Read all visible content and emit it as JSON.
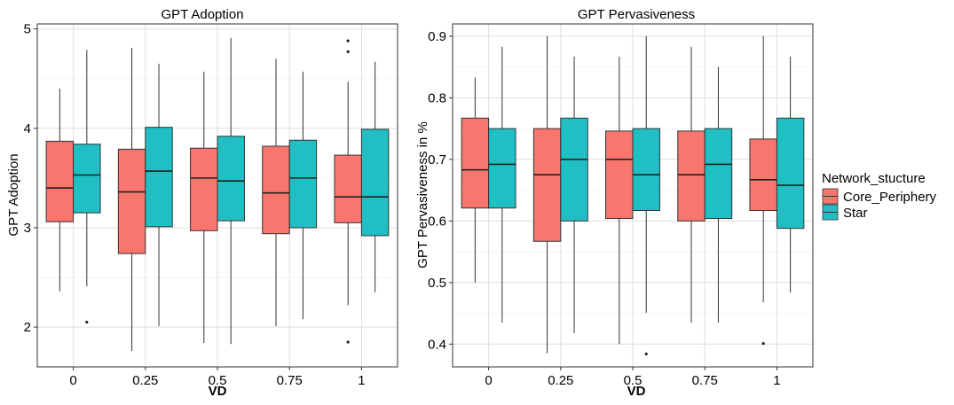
{
  "colors": {
    "Core_Periphery": "#f8766d",
    "Star": "#1fbfc3",
    "grid": "#dedede",
    "panel_border": "#333333"
  },
  "legend": {
    "title": "Network_stucture",
    "items": [
      "Core_Periphery",
      "Star"
    ],
    "placement": "right"
  },
  "chart_data": [
    {
      "type": "boxplot",
      "title": "GPT Adoption",
      "xlabel": "VD",
      "ylabel": "GPT Adoption",
      "categories": [
        "0",
        "0.25",
        "0.5",
        "0.75",
        "1"
      ],
      "ylim": [
        1.6,
        5.05
      ],
      "yticks": [
        2,
        3,
        4,
        5
      ],
      "ytick_labels": [
        "2",
        "3",
        "4",
        "5"
      ],
      "grid": true,
      "series": [
        {
          "name": "Core_Periphery",
          "boxes": [
            {
              "lw": 2.36,
              "q1": 3.06,
              "med": 3.4,
              "q3": 3.87,
              "uw": 4.4,
              "outliers": []
            },
            {
              "lw": 1.76,
              "q1": 2.74,
              "med": 3.36,
              "q3": 3.79,
              "uw": 4.81,
              "outliers": []
            },
            {
              "lw": 1.84,
              "q1": 2.97,
              "med": 3.5,
              "q3": 3.8,
              "uw": 4.57,
              "outliers": []
            },
            {
              "lw": 2.01,
              "q1": 2.94,
              "med": 3.35,
              "q3": 3.82,
              "uw": 4.7,
              "outliers": []
            },
            {
              "lw": 2.22,
              "q1": 3.05,
              "med": 3.31,
              "q3": 3.73,
              "uw": 4.47,
              "outliers": [
                4.88,
                4.77,
                1.85
              ]
            }
          ]
        },
        {
          "name": "Star",
          "boxes": [
            {
              "lw": 2.41,
              "q1": 3.15,
              "med": 3.53,
              "q3": 3.84,
              "uw": 4.79,
              "outliers": [
                2.05
              ]
            },
            {
              "lw": 2.01,
              "q1": 3.01,
              "med": 3.57,
              "q3": 4.01,
              "uw": 4.65,
              "outliers": []
            },
            {
              "lw": 1.83,
              "q1": 3.07,
              "med": 3.47,
              "q3": 3.92,
              "uw": 4.91,
              "outliers": []
            },
            {
              "lw": 2.08,
              "q1": 3.0,
              "med": 3.5,
              "q3": 3.88,
              "uw": 4.57,
              "outliers": []
            },
            {
              "lw": 2.35,
              "q1": 2.92,
              "med": 3.31,
              "q3": 3.99,
              "uw": 4.67,
              "outliers": []
            }
          ]
        }
      ]
    },
    {
      "type": "boxplot",
      "title": "GPT Pervasiveness",
      "xlabel": "VD",
      "ylabel": "GPT Pervasiveness in %",
      "categories": [
        "0",
        "0.25",
        "0.5",
        "0.75",
        "1"
      ],
      "ylim": [
        0.363,
        0.92
      ],
      "yticks": [
        0.4,
        0.5,
        0.6,
        0.7,
        0.8,
        0.9
      ],
      "ytick_labels": [
        "0.4",
        "0.5",
        "0.6",
        "0.7",
        "0.8",
        "0.9"
      ],
      "grid": true,
      "series": [
        {
          "name": "Core_Periphery",
          "boxes": [
            {
              "lw": 0.5,
              "q1": 0.621,
              "med": 0.683,
              "q3": 0.767,
              "uw": 0.833,
              "outliers": []
            },
            {
              "lw": 0.385,
              "q1": 0.567,
              "med": 0.675,
              "q3": 0.75,
              "uw": 0.9,
              "outliers": []
            },
            {
              "lw": 0.4,
              "q1": 0.604,
              "med": 0.7,
              "q3": 0.746,
              "uw": 0.867,
              "outliers": []
            },
            {
              "lw": 0.435,
              "q1": 0.6,
              "med": 0.675,
              "q3": 0.746,
              "uw": 0.883,
              "outliers": []
            },
            {
              "lw": 0.468,
              "q1": 0.617,
              "med": 0.667,
              "q3": 0.733,
              "uw": 0.9,
              "outliers": [
                0.401
              ]
            }
          ]
        },
        {
          "name": "Star",
          "boxes": [
            {
              "lw": 0.435,
              "q1": 0.621,
              "med": 0.692,
              "q3": 0.75,
              "uw": 0.883,
              "outliers": []
            },
            {
              "lw": 0.418,
              "q1": 0.6,
              "med": 0.7,
              "q3": 0.767,
              "uw": 0.867,
              "outliers": []
            },
            {
              "lw": 0.451,
              "q1": 0.617,
              "med": 0.675,
              "q3": 0.75,
              "uw": 0.9,
              "outliers": [
                0.384
              ]
            },
            {
              "lw": 0.435,
              "q1": 0.604,
              "med": 0.692,
              "q3": 0.75,
              "uw": 0.85,
              "outliers": []
            },
            {
              "lw": 0.484,
              "q1": 0.588,
              "med": 0.658,
              "q3": 0.767,
              "uw": 0.867,
              "outliers": []
            }
          ]
        }
      ]
    }
  ]
}
